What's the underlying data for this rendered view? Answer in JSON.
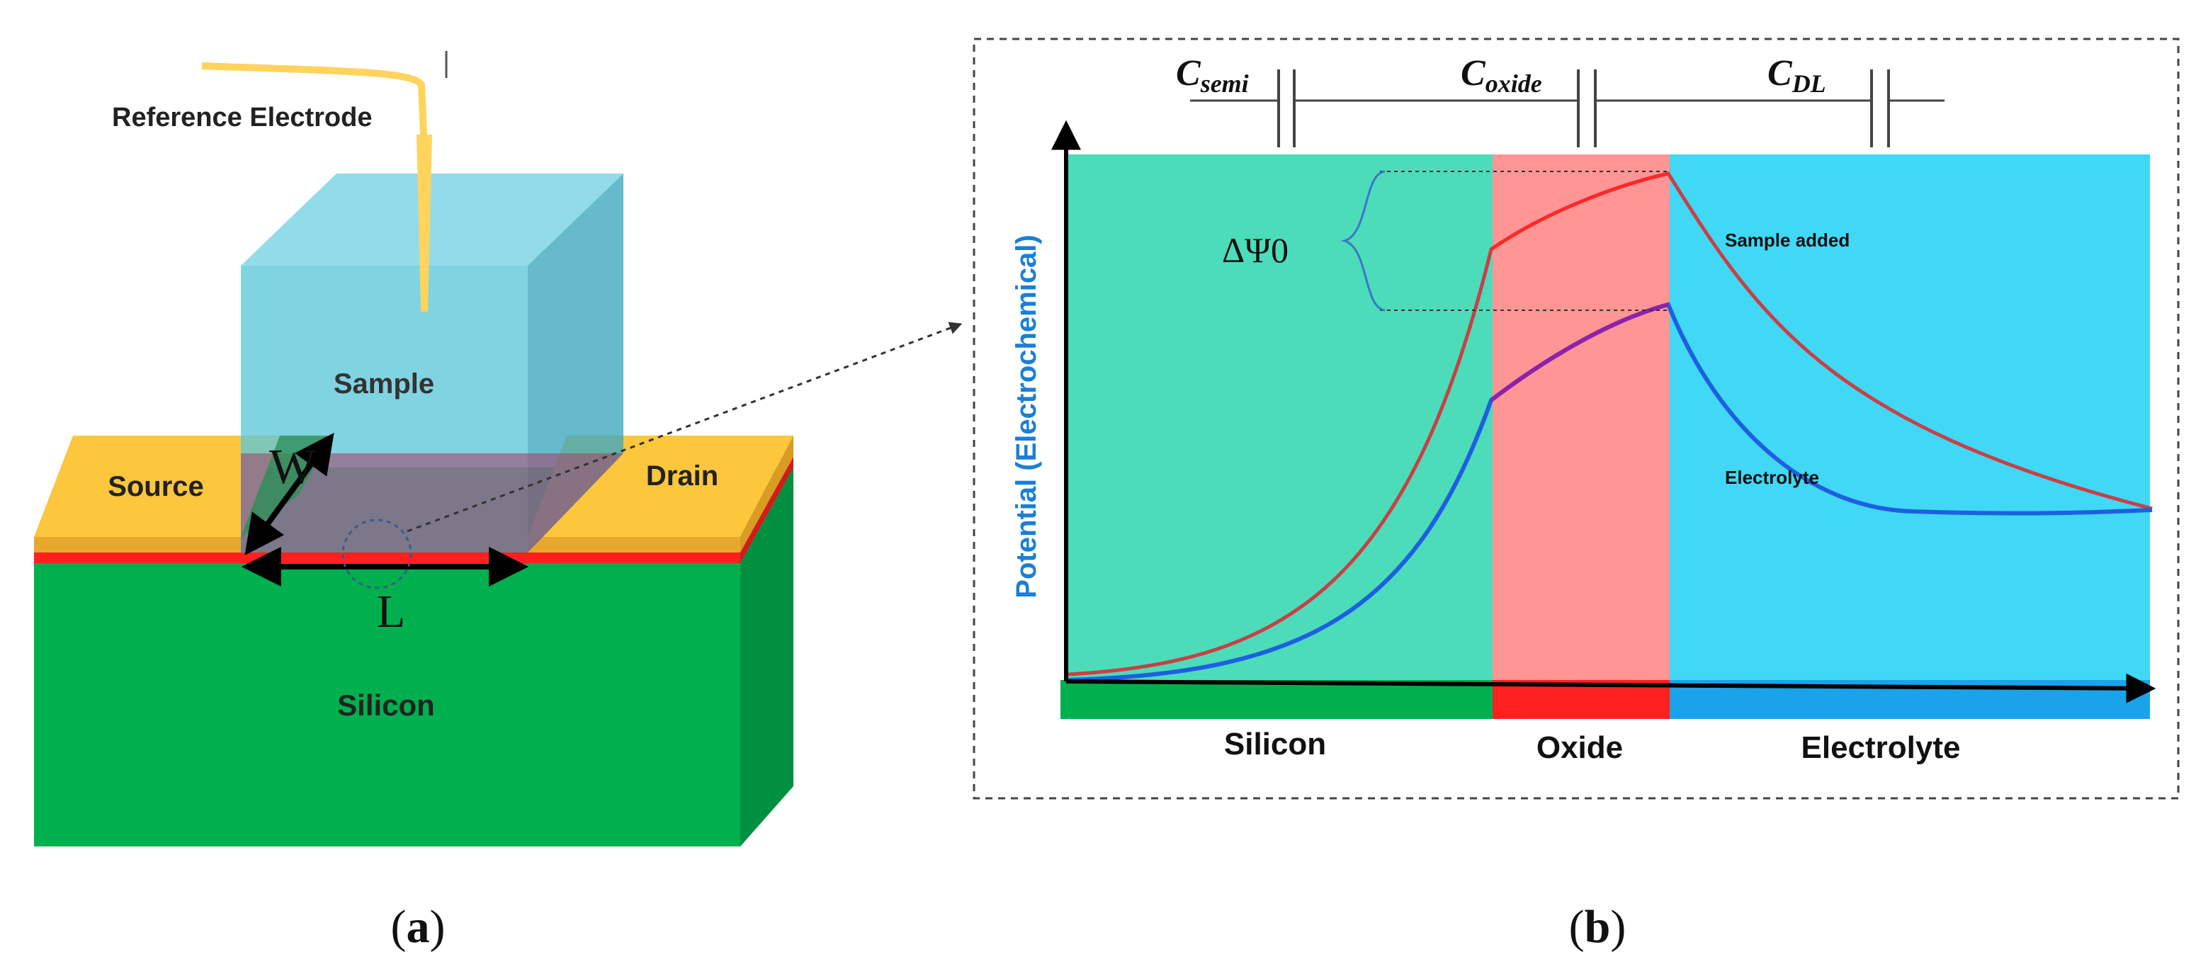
{
  "panel_a": {
    "caption_open": "(",
    "caption_letter": "a",
    "caption_close": ")",
    "labels": {
      "reference_electrode": "Reference Electrode",
      "sample": "Sample",
      "source": "Source",
      "drain": "Drain",
      "silicon": "Silicon",
      "width": "W",
      "length": "L"
    }
  },
  "panel_b": {
    "caption_open": "(",
    "caption_letter": "b",
    "caption_close": ")",
    "capacitors": {
      "semi": {
        "main": "C",
        "sub": "semi"
      },
      "oxide": {
        "main": "C",
        "sub": "oxide"
      },
      "dl": {
        "main": "C",
        "sub": "DL"
      }
    },
    "y_axis_label": "Potential (Electrochemical)",
    "delta_label": "ΔΨ0",
    "regions": [
      "Silicon",
      "Oxide",
      "Electrolyte"
    ],
    "curve_labels": {
      "sample_added": "Sample added",
      "electrolyte": "Electrolyte"
    }
  },
  "colors": {
    "silicon_green": "#00b04f",
    "silicon_region": "#4cdcb9",
    "oxide_region": "#ff9595",
    "electrolyte_region": "#40d8f5",
    "oxide_bar": "#ff2020",
    "electrolyte_bar": "#1aa3e8",
    "gold": "#fcc63d",
    "sample_cube": "#5cc6d9",
    "axis_label_blue": "#1a7fd6",
    "curve_sample": "#e0303a",
    "curve_electrolyte": "#1e5fe0",
    "curve_oxide_purple": "#9020a8"
  }
}
